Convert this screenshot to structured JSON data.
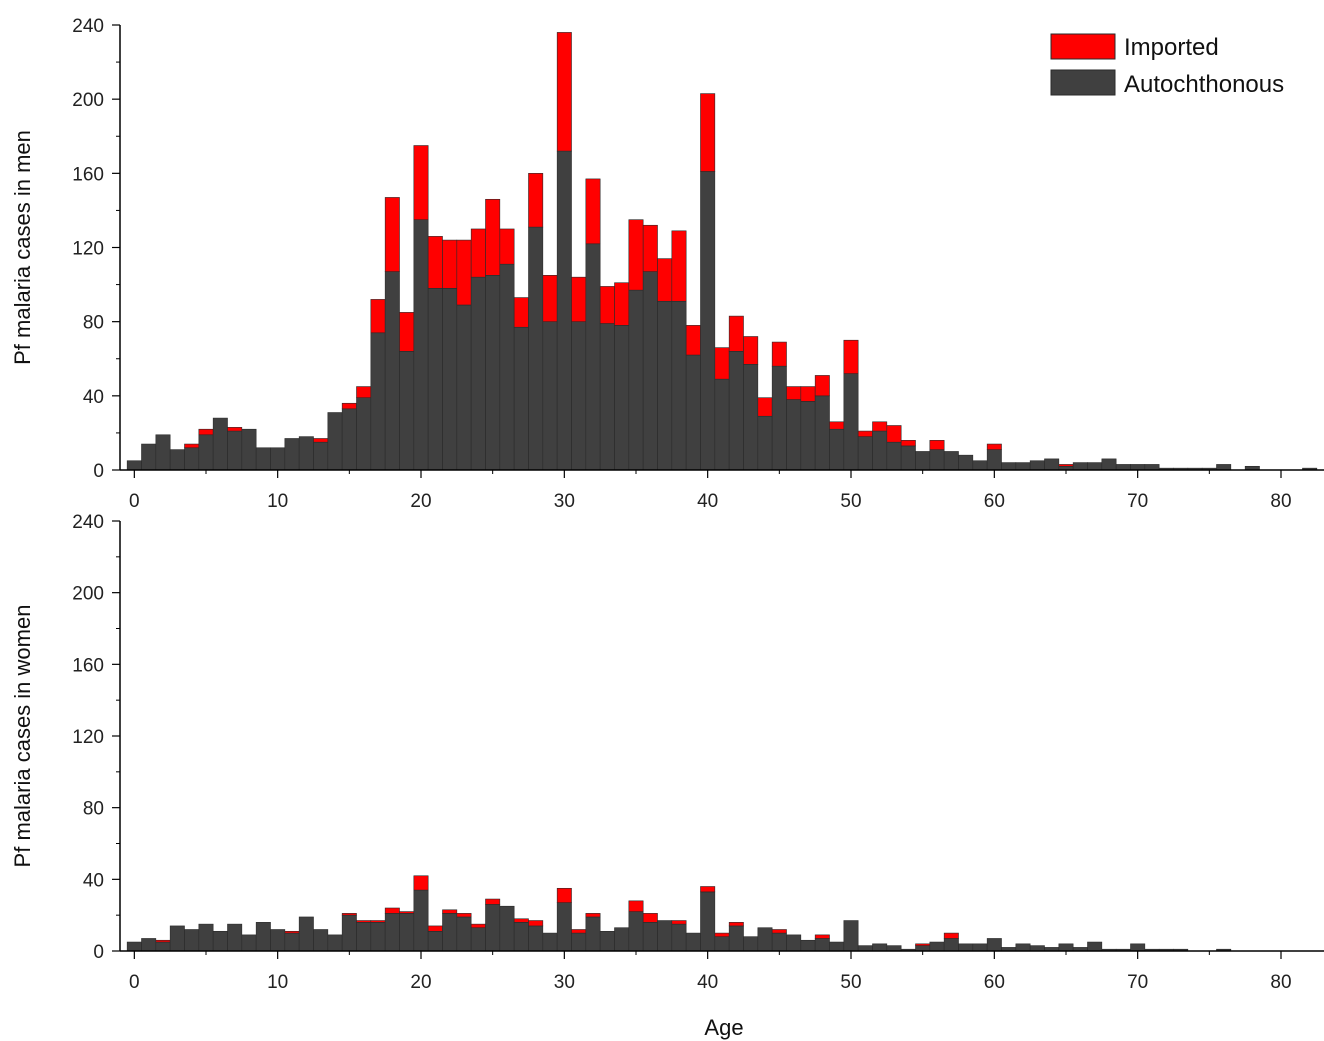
{
  "colors": {
    "imported": "#ff0000",
    "autochthonous": "#404040",
    "axis": "#000000",
    "edge": "#2a2a2a"
  },
  "legend": {
    "placement": "top-right",
    "imported": "Imported",
    "autochthonous": "Autochthonous"
  },
  "xlabel": "Age",
  "chart_data": [
    {
      "type": "bar",
      "stacked": true,
      "ylabel": "Pf malaria cases in men",
      "xlim": [
        -1,
        83
      ],
      "ylim": [
        0,
        240
      ],
      "xticks": [
        0,
        10,
        20,
        30,
        40,
        50,
        60,
        70,
        80
      ],
      "yticks": [
        0,
        40,
        80,
        120,
        160,
        200,
        240
      ],
      "x": [
        0,
        1,
        2,
        3,
        4,
        5,
        6,
        7,
        8,
        9,
        10,
        11,
        12,
        13,
        14,
        15,
        16,
        17,
        18,
        19,
        20,
        21,
        22,
        23,
        24,
        25,
        26,
        27,
        28,
        29,
        30,
        31,
        32,
        33,
        34,
        35,
        36,
        37,
        38,
        39,
        40,
        41,
        42,
        43,
        44,
        45,
        46,
        47,
        48,
        49,
        50,
        51,
        52,
        53,
        54,
        55,
        56,
        57,
        58,
        59,
        60,
        61,
        62,
        63,
        64,
        65,
        66,
        67,
        68,
        69,
        70,
        71,
        72,
        73,
        74,
        75,
        76,
        77,
        78,
        79,
        80,
        81,
        82
      ],
      "series": [
        {
          "name": "Autochthonous",
          "values": [
            5,
            14,
            19,
            11,
            12,
            19,
            28,
            21,
            22,
            12,
            12,
            17,
            18,
            15,
            31,
            33,
            39,
            74,
            107,
            64,
            135,
            98,
            98,
            89,
            104,
            105,
            111,
            77,
            131,
            80,
            172,
            80,
            122,
            79,
            78,
            97,
            107,
            91,
            91,
            62,
            161,
            49,
            64,
            57,
            29,
            56,
            38,
            37,
            40,
            22,
            52,
            18,
            21,
            15,
            13,
            10,
            11,
            10,
            8,
            5,
            11,
            4,
            4,
            5,
            6,
            2,
            4,
            4,
            6,
            3,
            3,
            3,
            1,
            1,
            1,
            1,
            3,
            0,
            2,
            0,
            0,
            0,
            1
          ]
        },
        {
          "name": "Imported",
          "values": [
            0,
            0,
            0,
            0,
            2,
            3,
            0,
            2,
            0,
            0,
            0,
            0,
            0,
            2,
            0,
            3,
            6,
            18,
            40,
            21,
            40,
            28,
            26,
            35,
            26,
            41,
            19,
            16,
            29,
            25,
            64,
            24,
            35,
            20,
            23,
            38,
            25,
            23,
            38,
            16,
            42,
            17,
            19,
            15,
            10,
            13,
            7,
            8,
            11,
            4,
            18,
            3,
            5,
            9,
            3,
            0,
            5,
            0,
            0,
            0,
            3,
            0,
            0,
            0,
            0,
            1,
            0,
            0,
            0,
            0,
            0,
            0,
            0,
            0,
            0,
            0,
            0,
            0,
            0,
            0,
            0,
            0,
            0
          ]
        }
      ]
    },
    {
      "type": "bar",
      "stacked": true,
      "ylabel": "Pf malaria cases in women",
      "xlim": [
        -1,
        83
      ],
      "ylim": [
        0,
        240
      ],
      "xticks": [
        0,
        10,
        20,
        30,
        40,
        50,
        60,
        70,
        80
      ],
      "yticks": [
        0,
        40,
        80,
        120,
        160,
        200,
        240
      ],
      "x": [
        0,
        1,
        2,
        3,
        4,
        5,
        6,
        7,
        8,
        9,
        10,
        11,
        12,
        13,
        14,
        15,
        16,
        17,
        18,
        19,
        20,
        21,
        22,
        23,
        24,
        25,
        26,
        27,
        28,
        29,
        30,
        31,
        32,
        33,
        34,
        35,
        36,
        37,
        38,
        39,
        40,
        41,
        42,
        43,
        44,
        45,
        46,
        47,
        48,
        49,
        50,
        51,
        52,
        53,
        54,
        55,
        56,
        57,
        58,
        59,
        60,
        61,
        62,
        63,
        64,
        65,
        66,
        67,
        68,
        69,
        70,
        71,
        72,
        73,
        74,
        75,
        76,
        77,
        78,
        79,
        80,
        81,
        82
      ],
      "series": [
        {
          "name": "Autochthonous",
          "values": [
            5,
            7,
            5,
            14,
            12,
            15,
            11,
            15,
            9,
            16,
            12,
            10,
            19,
            12,
            9,
            20,
            16,
            16,
            21,
            21,
            34,
            11,
            21,
            19,
            13,
            26,
            25,
            16,
            14,
            10,
            27,
            10,
            19,
            11,
            13,
            22,
            16,
            17,
            15,
            10,
            33,
            8,
            14,
            8,
            13,
            10,
            9,
            6,
            7,
            5,
            17,
            3,
            4,
            3,
            1,
            3,
            5,
            7,
            4,
            4,
            7,
            2,
            4,
            3,
            2,
            4,
            2,
            5,
            1,
            1,
            4,
            1,
            1,
            1,
            0,
            0,
            1,
            0,
            0,
            0,
            0,
            0,
            0
          ]
        },
        {
          "name": "Imported",
          "values": [
            0,
            0,
            1,
            0,
            0,
            0,
            0,
            0,
            0,
            0,
            0,
            1,
            0,
            0,
            0,
            1,
            1,
            1,
            3,
            1,
            8,
            3,
            2,
            2,
            2,
            3,
            0,
            2,
            3,
            0,
            8,
            2,
            2,
            0,
            0,
            6,
            5,
            0,
            2,
            0,
            3,
            2,
            2,
            0,
            0,
            2,
            0,
            0,
            2,
            0,
            0,
            0,
            0,
            0,
            0,
            1,
            0,
            3,
            0,
            0,
            0,
            0,
            0,
            0,
            0,
            0,
            0,
            0,
            0,
            0,
            0,
            0,
            0,
            0,
            0,
            0,
            0,
            0,
            0,
            0,
            0,
            0,
            0
          ]
        }
      ]
    }
  ]
}
